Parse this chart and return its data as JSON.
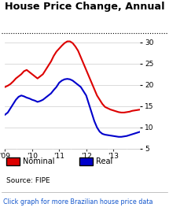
{
  "title": "House Price Change, Annual (%)",
  "background_color": "#ffffff",
  "plot_bg_color": "#ffffff",
  "ylabel_right_ticks": [
    5,
    10,
    15,
    20,
    25,
    30
  ],
  "ylim": [
    5,
    31
  ],
  "source_text": "Source: FIPE",
  "link_text": "Click graph for more Brazilian house price data",
  "link_color": "#1155cc",
  "nominal_color": "#dd0000",
  "real_color": "#0000cc",
  "x_tick_labels": [
    "'09",
    "'10",
    "'11",
    "'12",
    "'13"
  ],
  "x_tick_positions": [
    0.0,
    0.2,
    0.4,
    0.6,
    0.8
  ],
  "nominal_x": [
    0.0,
    0.02,
    0.04,
    0.06,
    0.08,
    0.1,
    0.12,
    0.14,
    0.16,
    0.18,
    0.2,
    0.22,
    0.24,
    0.26,
    0.28,
    0.3,
    0.32,
    0.34,
    0.36,
    0.38,
    0.4,
    0.42,
    0.44,
    0.46,
    0.48,
    0.5,
    0.52,
    0.54,
    0.56,
    0.58,
    0.6,
    0.62,
    0.64,
    0.66,
    0.68,
    0.7,
    0.72,
    0.74,
    0.76,
    0.78,
    0.8,
    0.82,
    0.84,
    0.86,
    0.88,
    0.9,
    0.92,
    0.94,
    0.96,
    0.98,
    1.0
  ],
  "nominal_y": [
    19.5,
    19.8,
    20.2,
    20.8,
    21.5,
    22.0,
    22.5,
    23.2,
    23.5,
    23.0,
    22.5,
    22.0,
    21.5,
    22.0,
    22.5,
    23.5,
    24.5,
    25.5,
    26.8,
    27.8,
    28.5,
    29.2,
    29.8,
    30.2,
    30.2,
    29.8,
    29.0,
    28.0,
    26.5,
    25.0,
    23.5,
    22.0,
    20.5,
    19.0,
    17.5,
    16.5,
    15.5,
    14.8,
    14.5,
    14.2,
    14.0,
    13.8,
    13.6,
    13.5,
    13.5,
    13.6,
    13.7,
    13.9,
    14.0,
    14.1,
    14.2
  ],
  "real_x": [
    0.0,
    0.02,
    0.04,
    0.06,
    0.08,
    0.1,
    0.12,
    0.14,
    0.16,
    0.18,
    0.2,
    0.22,
    0.24,
    0.26,
    0.28,
    0.3,
    0.32,
    0.34,
    0.36,
    0.38,
    0.4,
    0.42,
    0.44,
    0.46,
    0.48,
    0.5,
    0.52,
    0.54,
    0.56,
    0.58,
    0.6,
    0.62,
    0.64,
    0.66,
    0.68,
    0.7,
    0.72,
    0.74,
    0.76,
    0.78,
    0.8,
    0.82,
    0.84,
    0.86,
    0.88,
    0.9,
    0.92,
    0.94,
    0.96,
    0.98,
    1.0
  ],
  "real_y": [
    13.0,
    13.5,
    14.5,
    15.5,
    16.5,
    17.2,
    17.5,
    17.3,
    17.0,
    16.8,
    16.5,
    16.3,
    16.0,
    16.2,
    16.5,
    17.0,
    17.5,
    18.0,
    18.8,
    19.5,
    20.5,
    21.0,
    21.3,
    21.4,
    21.3,
    21.0,
    20.5,
    20.0,
    19.5,
    18.5,
    17.5,
    15.5,
    13.5,
    11.5,
    10.0,
    9.0,
    8.5,
    8.3,
    8.2,
    8.1,
    8.0,
    7.9,
    7.8,
    7.8,
    7.9,
    8.0,
    8.2,
    8.4,
    8.6,
    8.8,
    9.0
  ]
}
